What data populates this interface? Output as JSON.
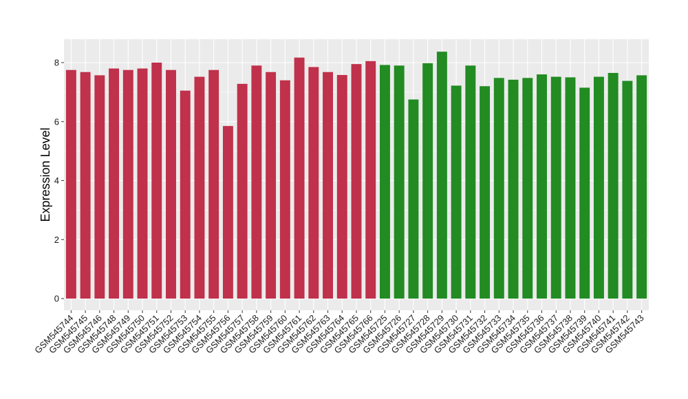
{
  "chart_data": {
    "type": "bar",
    "ylabel": "Expression Level",
    "xlabel": "",
    "ylim": [
      0,
      8.8
    ],
    "yticks": [
      0,
      2,
      4,
      6,
      8
    ],
    "grid": true,
    "legend": "none",
    "colors": {
      "group1": "#C0314B",
      "group2": "#228B22",
      "panel": "#EBEBEB",
      "grid": "#FFFFFF"
    },
    "categories": [
      "GSM545744",
      "GSM545745",
      "GSM545746",
      "GSM545748",
      "GSM545749",
      "GSM545750",
      "GSM545751",
      "GSM545752",
      "GSM545753",
      "GSM545754",
      "GSM545755",
      "GSM545756",
      "GSM545757",
      "GSM545758",
      "GSM545759",
      "GSM545760",
      "GSM545761",
      "GSM545762",
      "GSM545763",
      "GSM545764",
      "GSM545765",
      "GSM545766",
      "GSM545725",
      "GSM545726",
      "GSM545727",
      "GSM545728",
      "GSM545729",
      "GSM545730",
      "GSM545731",
      "GSM545732",
      "GSM545733",
      "GSM545734",
      "GSM545735",
      "GSM545736",
      "GSM545737",
      "GSM545738",
      "GSM545739",
      "GSM545740",
      "GSM545741",
      "GSM545742",
      "GSM545743"
    ],
    "values": [
      7.75,
      7.68,
      7.57,
      7.8,
      7.75,
      7.8,
      8.0,
      7.75,
      7.05,
      7.52,
      7.75,
      5.85,
      7.28,
      7.9,
      7.68,
      7.4,
      8.17,
      7.85,
      7.68,
      7.58,
      7.95,
      8.05,
      7.92,
      7.9,
      6.75,
      7.98,
      8.37,
      7.22,
      7.9,
      7.2,
      7.48,
      7.42,
      7.48,
      7.6,
      7.52,
      7.5,
      7.15,
      7.52,
      7.65,
      7.38,
      7.57
    ],
    "groups": [
      "group1",
      "group1",
      "group1",
      "group1",
      "group1",
      "group1",
      "group1",
      "group1",
      "group1",
      "group1",
      "group1",
      "group1",
      "group1",
      "group1",
      "group1",
      "group1",
      "group1",
      "group1",
      "group1",
      "group1",
      "group1",
      "group1",
      "group2",
      "group2",
      "group2",
      "group2",
      "group2",
      "group2",
      "group2",
      "group2",
      "group2",
      "group2",
      "group2",
      "group2",
      "group2",
      "group2",
      "group2",
      "group2",
      "group2",
      "group2",
      "group2"
    ]
  }
}
